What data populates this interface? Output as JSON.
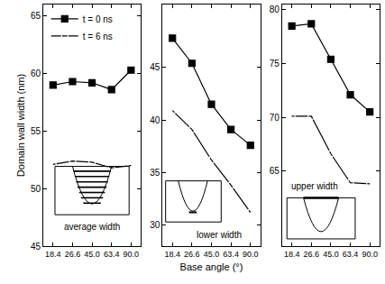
{
  "chart_data": [
    {
      "type": "line",
      "ylabel": "Domain wall width (nm)",
      "categories": [
        "18.4",
        "26.6",
        "45.0",
        "63.4",
        "90.0"
      ],
      "series": [
        {
          "name": "t = 0 ns",
          "color": "#000000",
          "marker": "square",
          "values": [
            59.0,
            59.3,
            59.2,
            58.6,
            60.3
          ]
        },
        {
          "name": "t = 6 ns",
          "color": "#000000",
          "marker": "circle-open",
          "values": [
            52.1,
            52.4,
            52.3,
            51.8,
            52.0
          ]
        }
      ],
      "ylim": [
        45,
        66
      ],
      "yticks": [
        45,
        50,
        55,
        60,
        65
      ],
      "grid": false,
      "legend": "upper left",
      "annotation": "average width"
    },
    {
      "type": "line",
      "xlabel": "Base angle (°)",
      "categories": [
        "18.4",
        "26.6",
        "45.0",
        "63.4",
        "90.0"
      ],
      "series": [
        {
          "name": "t = 0 ns",
          "color": "#000000",
          "marker": "square",
          "values": [
            47.8,
            45.4,
            41.5,
            39.1,
            37.6
          ]
        },
        {
          "name": "t = 6 ns",
          "color": "#000000",
          "marker": "circle-open",
          "values": [
            40.9,
            39.1,
            36.2,
            33.8,
            31.2
          ]
        }
      ],
      "ylim": [
        28,
        51
      ],
      "yticks": [
        30,
        35,
        40,
        45
      ],
      "grid": false,
      "annotation": "lower width"
    },
    {
      "type": "line",
      "categories": [
        "18.4",
        "26.6",
        "45.0",
        "63.4",
        "90.0"
      ],
      "series": [
        {
          "name": "t = 0 ns",
          "color": "#000000",
          "marker": "square",
          "values": [
            78.5,
            78.7,
            75.4,
            72.1,
            70.5
          ]
        },
        {
          "name": "t = 6 ns",
          "color": "#000000",
          "marker": "circle-open",
          "values": [
            70.1,
            70.1,
            66.6,
            63.9,
            63.8
          ]
        }
      ],
      "ylim": [
        58,
        80.5
      ],
      "yticks": [
        65,
        70,
        75,
        80
      ],
      "grid": false,
      "annotation": "upper width"
    }
  ]
}
